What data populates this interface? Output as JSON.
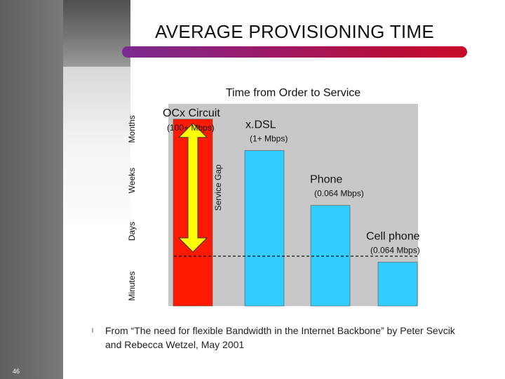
{
  "slide": {
    "title": "AVERAGE PROVISIONING TIME",
    "page_number": "46",
    "source_bullet": "l",
    "source_text": "From “The need for flexible Bandwidth in the Internet Backbone” by Peter Sevcik and Rebecca Wetzel, May 2001"
  },
  "colors": {
    "title_bar_start": "#7a2b8f",
    "title_bar_end": "#c80a2a",
    "red_bar": "#ff1a00",
    "blue_bar": "#33ccff",
    "arrow": "#ffff00",
    "plot_bg": "#c8c8c8"
  },
  "chart_data": {
    "type": "bar",
    "title": "Time from Order to Service",
    "y_ticks": [
      "Minutes",
      "Days",
      "Weeks",
      "Months"
    ],
    "ylim": [
      0,
      4
    ],
    "categories": [
      "OCx Circuit",
      "x.DSL",
      "Phone",
      "Cell phone"
    ],
    "bandwidth_labels": [
      "(100+ Mbps)",
      "(1+ Mbps)",
      "(0.064 Mbps)",
      "(0.064 Mbps)"
    ],
    "values": [
      3.75,
      3.12,
      2.02,
      0.88
    ],
    "bar_colors": [
      "#ff1a00",
      "#33ccff",
      "#33ccff",
      "#33ccff"
    ],
    "reference_line": 1.0,
    "annotation": "Service Gap",
    "gap_range": [
      1.0,
      3.75
    ],
    "grid": false
  }
}
